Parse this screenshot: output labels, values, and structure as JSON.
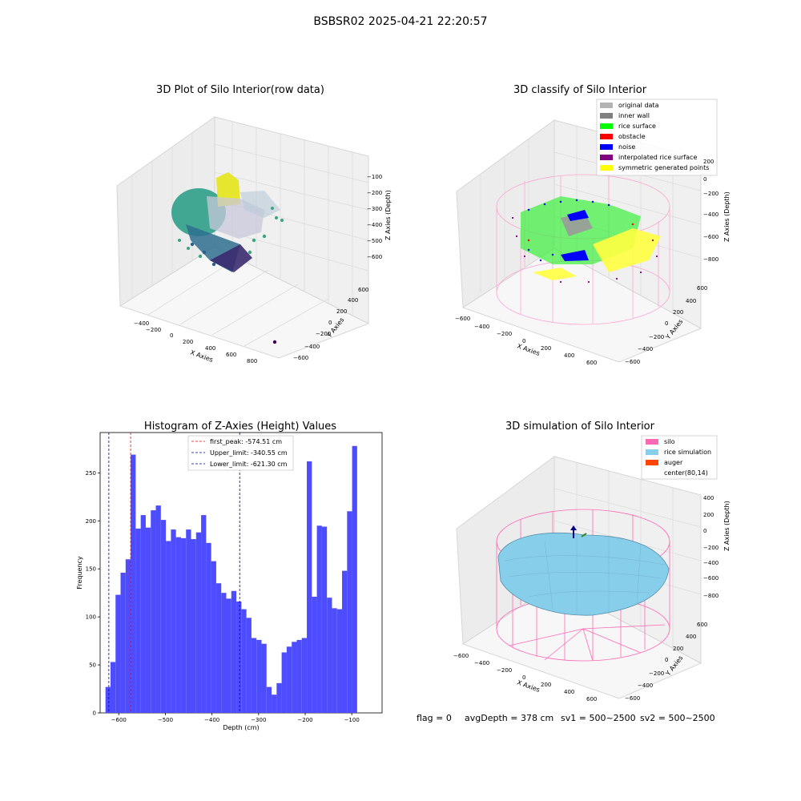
{
  "figure_title": "BSBSR02 2025-04-21 22:20:57",
  "status_line": {
    "flag": "flag = 0",
    "avg_depth": "avgDepth = 378 cm",
    "sv1": "sv1 = 500~2500",
    "sv2": "sv2 = 500~2500"
  },
  "colors": {
    "histogram_bar": "#4d4dff",
    "first_peak_line": "#ff0000",
    "limit_lines": "#0000aa",
    "silo_wire": "#ff69b4",
    "rice_simulation": "#87ceeb",
    "auger": "#ff4500",
    "pane": "#f2f2f2"
  },
  "chart_data": [
    {
      "type": "scatter3d",
      "title": "3D Plot of Silo Interior(row data)",
      "xlabel": "X Axies",
      "ylabel": "Y Axies",
      "zlabel": "Z Axies (Depth)",
      "x_ticks": [
        "−400",
        "−200",
        "0",
        "200",
        "400",
        "600",
        "800"
      ],
      "y_ticks": [
        "−600",
        "−400",
        "−200",
        "0",
        "200",
        "400",
        "600"
      ],
      "z_ticks": [
        "−600",
        "−500",
        "−400",
        "−300",
        "−200",
        "−100"
      ],
      "colormap": "viridis"
    },
    {
      "type": "scatter3d",
      "title": "3D classify of Silo Interior",
      "xlabel": "X Axies",
      "ylabel": "Y Axies",
      "zlabel": "Z Axies (Depth)",
      "x_ticks": [
        "−600",
        "−400",
        "−200",
        "0",
        "200",
        "400",
        "600"
      ],
      "y_ticks": [
        "−600",
        "−400",
        "−200",
        "0",
        "200",
        "400",
        "600"
      ],
      "z_ticks": [
        "−800",
        "−600",
        "−400",
        "−200",
        "0",
        "200"
      ],
      "legend": [
        {
          "label": "original data",
          "color": "#b3b3b3"
        },
        {
          "label": "inner wall",
          "color": "#808080"
        },
        {
          "label": "rice surface",
          "color": "#00ff00"
        },
        {
          "label": "obstacle",
          "color": "#ff0000"
        },
        {
          "label": "noise",
          "color": "#0000ff"
        },
        {
          "label": "interpolated rice surface",
          "color": "#800080"
        },
        {
          "label": "symmetric generated points",
          "color": "#ffff00"
        }
      ]
    },
    {
      "type": "bar",
      "title": "Histogram of Z-Axies (Height) Values",
      "xlabel": "Depth (cm)",
      "ylabel": "Frequency",
      "xlim": [
        -640,
        -35
      ],
      "ylim": [
        0,
        292
      ],
      "x_ticks": [
        -600,
        -500,
        -400,
        -300,
        -200,
        -100
      ],
      "x_tick_labels": [
        "−600",
        "−500",
        "−400",
        "−300",
        "−200",
        "−100"
      ],
      "y_ticks": [
        0,
        50,
        100,
        150,
        200,
        250
      ],
      "y_tick_labels": [
        "0",
        "50",
        "100",
        "150",
        "200",
        "250"
      ],
      "bin_start": -628.5,
      "bin_width": 10.8,
      "values": [
        27,
        53,
        123,
        146,
        160,
        269,
        192,
        206,
        193,
        211,
        216,
        201,
        179,
        191,
        183,
        182,
        191,
        181,
        188,
        206,
        177,
        158,
        135,
        125,
        119,
        127,
        116,
        108,
        99,
        78,
        76,
        72,
        27,
        19,
        31,
        63,
        69,
        74,
        76,
        78,
        262,
        121,
        195,
        194,
        120,
        109,
        108,
        148,
        210,
        278
      ],
      "reference_lines": [
        {
          "label": "first_peak: -574.51 cm",
          "x": -574.51,
          "color": "#ff0000"
        },
        {
          "label": "Upper_limit: -340.55 cm",
          "x": -340.55,
          "color": "#0000aa"
        },
        {
          "label": "Lower_limit: -621.30 cm",
          "x": -621.3,
          "color": "#0000aa"
        }
      ]
    },
    {
      "type": "surface3d",
      "title": "3D simulation of Silo Interior",
      "xlabel": "X Axies",
      "ylabel": "Y Axies",
      "zlabel": "Z Axies (Depth)",
      "x_ticks": [
        "−600",
        "−400",
        "−200",
        "0",
        "200",
        "400",
        "600"
      ],
      "y_ticks": [
        "−600",
        "−400",
        "−200",
        "0",
        "200",
        "400",
        "600"
      ],
      "z_ticks": [
        "−800",
        "−600",
        "−400",
        "−200",
        "0",
        "200",
        "400"
      ],
      "legend": [
        {
          "label": "silo",
          "color": "#ff69b4"
        },
        {
          "label": "rice simulation",
          "color": "#87ceeb"
        },
        {
          "label": "auger",
          "color": "#ff4500"
        },
        {
          "label": "center(80,14)",
          "color": "#ffffff"
        }
      ]
    }
  ]
}
